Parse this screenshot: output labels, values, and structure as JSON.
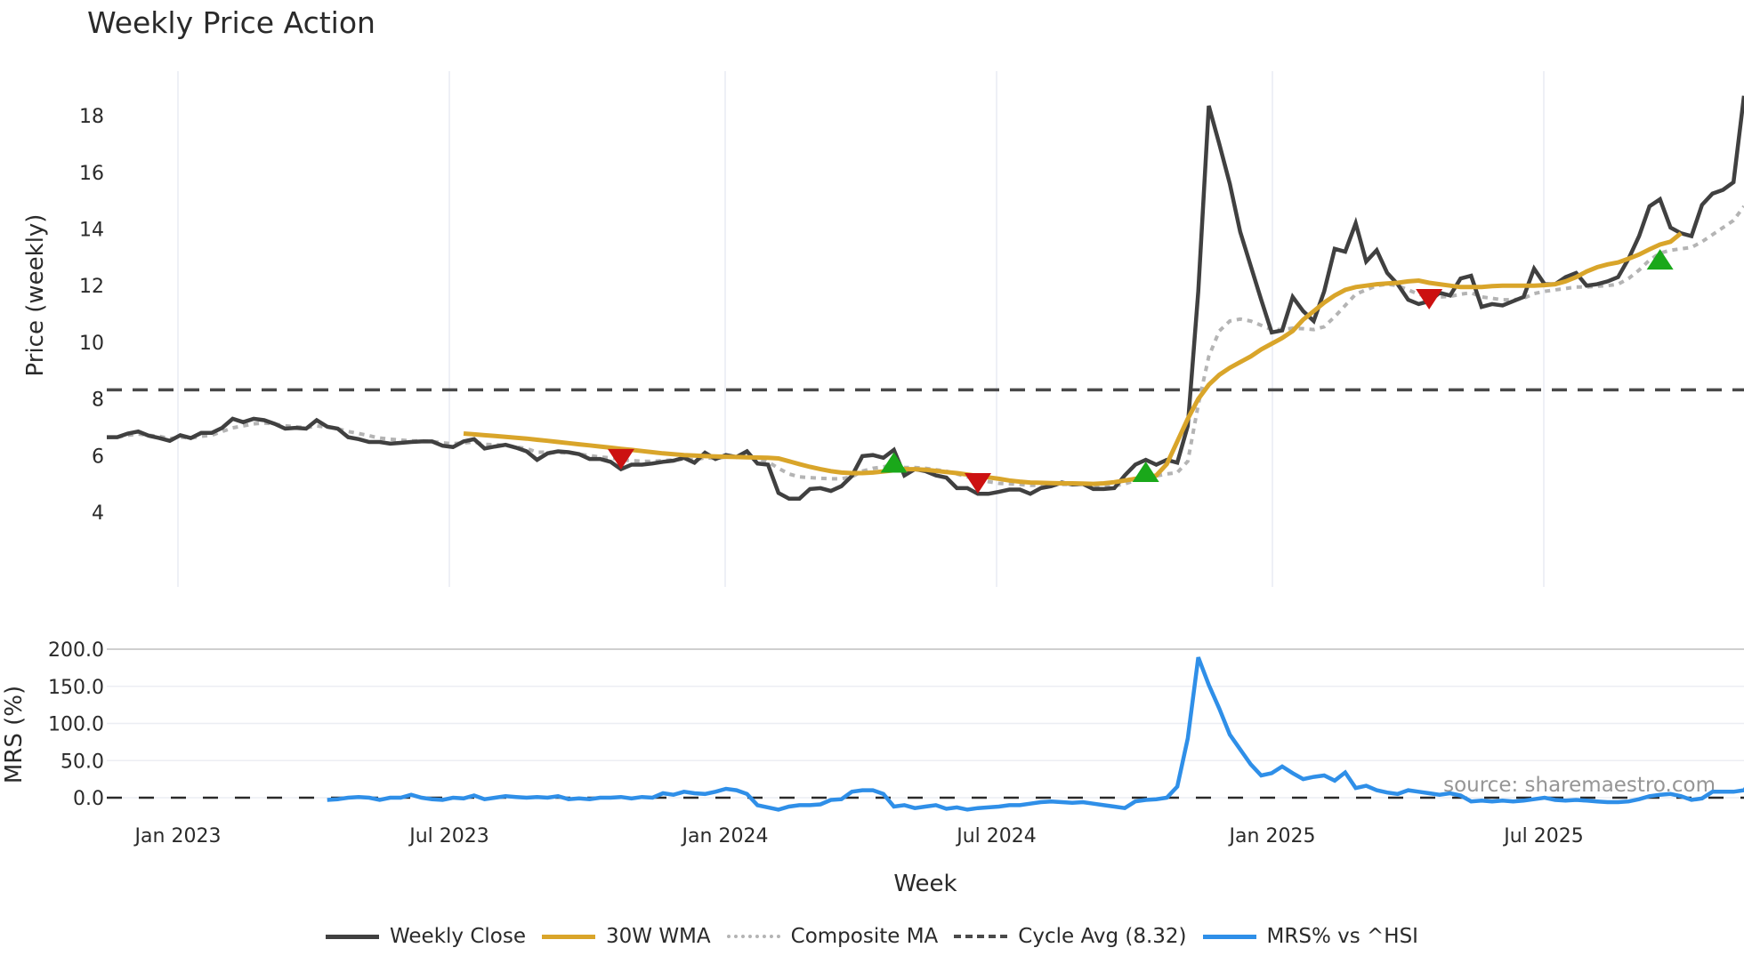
{
  "title": "Weekly Price Action",
  "colors": {
    "close": "#404040",
    "wma": "#d9a52a",
    "composite": "#b4b4b4",
    "cycle": "#4a4a4a",
    "mrs": "#2f8fe8",
    "buy": "#1aa81a",
    "sell": "#cc1111",
    "grid": "#e8ecf4"
  },
  "legend": {
    "items": [
      {
        "label": "Weekly Close",
        "style": "solid",
        "color": "#404040"
      },
      {
        "label": "30W WMA",
        "style": "solid",
        "color": "#d9a52a"
      },
      {
        "label": "Composite MA",
        "style": "dotted",
        "color": "#b4b4b4"
      },
      {
        "label": "Cycle Avg (8.32)",
        "style": "dashed",
        "color": "#4a4a4a"
      },
      {
        "label": "MRS% vs ^HSI",
        "style": "solid",
        "color": "#2f8fe8"
      }
    ]
  },
  "watermark": "source: sharemaestro.com",
  "chart_data": [
    {
      "type": "line",
      "title": "Weekly Price Action",
      "xlabel": "Week",
      "ylabel": "Price (weekly)",
      "ylim": [
        3.7,
        19.5
      ],
      "yticks": [
        4,
        6,
        8,
        10,
        12,
        14,
        16,
        18
      ],
      "xticks": [
        "Jan 2023",
        "Jul 2023",
        "Jan 2024",
        "Jul 2024",
        "Jan 2025",
        "Jul 2025"
      ],
      "grid": "vertical",
      "start_week": "2022-11-07",
      "series": [
        {
          "name": "Weekly Close",
          "values": [
            6.65,
            6.65,
            6.78,
            6.85,
            6.7,
            6.62,
            6.52,
            6.72,
            6.62,
            6.8,
            6.8,
            6.98,
            7.3,
            7.18,
            7.3,
            7.25,
            7.12,
            6.95,
            6.98,
            6.95,
            7.25,
            7.02,
            6.95,
            6.65,
            6.58,
            6.48,
            6.48,
            6.42,
            6.45,
            6.48,
            6.5,
            6.5,
            6.35,
            6.3,
            6.5,
            6.58,
            6.25,
            6.32,
            6.38,
            6.28,
            6.15,
            5.85,
            6.08,
            6.15,
            6.12,
            6.05,
            5.88,
            5.88,
            5.78,
            5.52,
            5.68,
            5.68,
            5.72,
            5.78,
            5.82,
            5.92,
            5.75,
            6.1,
            5.88,
            6.02,
            5.95,
            6.15,
            5.72,
            5.68,
            4.68,
            4.48,
            4.48,
            4.82,
            4.85,
            4.75,
            4.92,
            5.28,
            5.98,
            6.02,
            5.92,
            6.2,
            5.3,
            5.52,
            5.45,
            5.3,
            5.22,
            4.85,
            4.85,
            4.65,
            4.65,
            4.72,
            4.8,
            4.8,
            4.65,
            4.85,
            4.92,
            5.05,
            4.98,
            5.0,
            4.82,
            4.82,
            4.85,
            5.3,
            5.68,
            5.85,
            5.68,
            5.85,
            5.75,
            7.05,
            11.8,
            18.35,
            17.0,
            15.6,
            13.9,
            12.7,
            11.5,
            10.35,
            10.42,
            11.6,
            11.1,
            10.75,
            11.8,
            13.3,
            13.2,
            14.2,
            12.85,
            13.25,
            12.45,
            12.05,
            11.5,
            11.35,
            11.45,
            11.75,
            11.65,
            12.25,
            12.35,
            11.25,
            11.35,
            11.3,
            11.45,
            11.6,
            12.6,
            12.05,
            12.05,
            12.3,
            12.45,
            12.0,
            12.05,
            12.15,
            12.3,
            12.95,
            13.75,
            14.8,
            15.05,
            14.05,
            13.85,
            13.75,
            14.85,
            15.25,
            15.38,
            15.65,
            18.7
          ]
        },
        {
          "name": "30W WMA",
          "start_index": 34,
          "values": [
            6.78,
            6.75,
            6.72,
            6.69,
            6.66,
            6.63,
            6.6,
            6.56,
            6.52,
            6.48,
            6.44,
            6.4,
            6.36,
            6.32,
            6.28,
            6.24,
            6.2,
            6.16,
            6.12,
            6.08,
            6.05,
            6.02,
            6.0,
            5.98,
            5.97,
            5.96,
            5.95,
            5.94,
            5.93,
            5.92,
            5.9,
            5.8,
            5.7,
            5.6,
            5.52,
            5.45,
            5.4,
            5.38,
            5.38,
            5.4,
            5.44,
            5.48,
            5.52,
            5.52,
            5.5,
            5.46,
            5.42,
            5.38,
            5.33,
            5.28,
            5.23,
            5.18,
            5.12,
            5.08,
            5.05,
            5.04,
            5.03,
            5.02,
            5.02,
            5.01,
            5.0,
            5.02,
            5.06,
            5.12,
            5.18,
            5.2,
            5.3,
            5.7,
            6.5,
            7.3,
            8.0,
            8.5,
            8.85,
            9.1,
            9.3,
            9.5,
            9.75,
            9.95,
            10.15,
            10.4,
            10.8,
            11.1,
            11.4,
            11.65,
            11.85,
            11.95,
            12.0,
            12.05,
            12.08,
            12.1,
            12.15,
            12.18,
            12.1,
            12.05,
            12.0,
            11.95,
            11.95,
            11.95,
            11.98,
            12.0,
            12.0,
            12.0,
            12.0,
            12.02,
            12.05,
            12.15,
            12.3,
            12.5,
            12.65,
            12.75,
            12.82,
            12.95,
            13.1,
            13.28,
            13.45,
            13.55,
            13.85
          ]
        },
        {
          "name": "Composite MA",
          "values": [
            6.65,
            6.65,
            6.72,
            6.76,
            6.72,
            6.68,
            6.6,
            6.65,
            6.62,
            6.68,
            6.72,
            6.85,
            6.98,
            7.05,
            7.12,
            7.15,
            7.12,
            7.05,
            7.02,
            6.98,
            7.05,
            7.0,
            6.95,
            6.85,
            6.78,
            6.7,
            6.62,
            6.58,
            6.55,
            6.52,
            6.52,
            6.5,
            6.45,
            6.42,
            6.45,
            6.48,
            6.4,
            6.38,
            6.36,
            6.3,
            6.25,
            6.12,
            6.12,
            6.1,
            6.1,
            6.05,
            6.0,
            5.95,
            5.92,
            5.85,
            5.82,
            5.8,
            5.8,
            5.82,
            5.85,
            5.88,
            5.85,
            5.92,
            5.9,
            5.95,
            5.95,
            6.0,
            5.9,
            5.78,
            5.55,
            5.35,
            5.25,
            5.22,
            5.2,
            5.18,
            5.18,
            5.25,
            5.45,
            5.55,
            5.6,
            5.7,
            5.58,
            5.58,
            5.55,
            5.5,
            5.45,
            5.35,
            5.25,
            5.15,
            5.08,
            5.02,
            5.0,
            4.98,
            4.95,
            4.95,
            4.95,
            4.98,
            4.98,
            4.98,
            4.95,
            4.93,
            4.93,
            5.0,
            5.12,
            5.22,
            5.28,
            5.35,
            5.4,
            5.8,
            7.8,
            9.5,
            10.4,
            10.75,
            10.82,
            10.75,
            10.6,
            10.45,
            10.45,
            10.5,
            10.48,
            10.45,
            10.55,
            10.9,
            11.3,
            11.7,
            11.85,
            12.0,
            12.05,
            12.0,
            11.85,
            11.7,
            11.6,
            11.6,
            11.62,
            11.7,
            11.75,
            11.6,
            11.55,
            11.5,
            11.5,
            11.55,
            11.72,
            11.8,
            11.85,
            11.9,
            11.95,
            11.95,
            11.98,
            12.0,
            12.05,
            12.25,
            12.55,
            12.9,
            13.15,
            13.25,
            13.3,
            13.35,
            13.55,
            13.8,
            14.05,
            14.3,
            14.8
          ]
        },
        {
          "name": "Cycle Avg (8.32)",
          "style": "dashed",
          "value": 8.32
        }
      ],
      "markers": [
        {
          "type": "sell",
          "index": 49,
          "value": 5.95
        },
        {
          "type": "buy",
          "index": 75,
          "value": 5.68
        },
        {
          "type": "sell",
          "index": 83,
          "value": 5.1
        },
        {
          "type": "buy",
          "index": 99,
          "value": 5.35
        },
        {
          "type": "sell",
          "index": 126,
          "value": 11.6
        },
        {
          "type": "buy",
          "index": 148,
          "value": 12.85
        }
      ]
    },
    {
      "type": "line",
      "title": "",
      "xlabel": "Week",
      "ylabel": "MRS (%)",
      "ylim": [
        -18,
        205
      ],
      "yticks": [
        "0.0",
        "50.0",
        "100.0",
        "150.0",
        "200.0"
      ],
      "grid": "horizontal",
      "series": [
        {
          "name": "MRS% vs ^HSI",
          "start_index": 21,
          "values": [
            -3,
            -2,
            0,
            1,
            0,
            -3,
            0,
            0,
            4,
            0,
            -2,
            -3,
            0,
            -1,
            3,
            -2,
            0,
            2,
            1,
            0,
            1,
            0,
            2,
            -2,
            -1,
            -2,
            0,
            0,
            1,
            -1,
            1,
            0,
            6,
            4,
            8,
            6,
            5,
            8,
            12,
            10,
            5,
            -10,
            -13,
            -16,
            -12,
            -10,
            -10,
            -9,
            -3,
            -2,
            8,
            10,
            10,
            5,
            -12,
            -10,
            -14,
            -12,
            -10,
            -15,
            -13,
            -16,
            -14,
            -13,
            -12,
            -10,
            -10,
            -8,
            -6,
            -5,
            -6,
            -7,
            -6,
            -8,
            -10,
            -12,
            -14,
            -5,
            -3,
            -2,
            0,
            15,
            80,
            189,
            152,
            120,
            85,
            65,
            45,
            30,
            33,
            42,
            33,
            25,
            28,
            30,
            23,
            34,
            13,
            16,
            10,
            7,
            5,
            10,
            8,
            6,
            4,
            6,
            3,
            -5,
            -4,
            -5,
            -4,
            -5,
            -4,
            -2,
            0,
            -3,
            -4,
            -3,
            -4,
            -5,
            -6,
            -6,
            -5,
            -2,
            2,
            4,
            5,
            2,
            -3,
            -1,
            8,
            8,
            8,
            10,
            28
          ]
        }
      ]
    }
  ],
  "axes": {
    "price": {
      "ylabel": "Price (weekly)",
      "yticks": [
        "4",
        "6",
        "8",
        "10",
        "12",
        "14",
        "16",
        "18"
      ]
    },
    "mrs": {
      "ylabel": "MRS (%)",
      "yticks": [
        "0.0",
        "50.0",
        "100.0",
        "150.0",
        "200.0"
      ]
    },
    "x": {
      "xlabel": "Week",
      "ticks": [
        "Jan 2023",
        "Jul 2023",
        "Jan 2024",
        "Jul 2024",
        "Jan 2025",
        "Jul 2025"
      ]
    }
  }
}
